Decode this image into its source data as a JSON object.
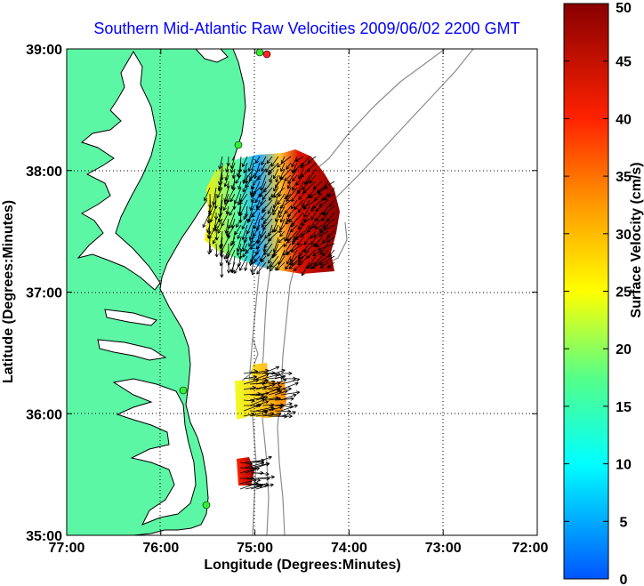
{
  "title": "Southern Mid-Atlantic Raw Velocities 2009/06/02 2200 GMT",
  "x_axis": {
    "label": "Longitude (Degrees:Minutes)",
    "ticks": [
      "77:00",
      "76:00",
      "75:00",
      "74:00",
      "73:00",
      "72:00"
    ],
    "values": [
      -77,
      -76,
      -75,
      -74,
      -73,
      -72
    ]
  },
  "y_axis": {
    "label": "Latitude (Degrees:Minutes)",
    "ticks": [
      "39:00",
      "38:00",
      "37:00",
      "36:00",
      "35:00"
    ],
    "values": [
      39,
      38,
      37,
      36,
      35
    ]
  },
  "colorbar": {
    "label": "Surface Velocity (cm/s)",
    "ticks": [
      "50",
      "45",
      "40",
      "35",
      "30",
      "25",
      "20",
      "15",
      "10",
      "5",
      "0"
    ],
    "min": 0,
    "max": 50
  },
  "colors": {
    "land": "#5cf7a5",
    "sea": "#ffffff",
    "coast": "#000000",
    "bathymetry": "#8c8c8c",
    "title": "#0000ff",
    "site_marker": "#33ee33",
    "site_marker_alt": "#ff2222"
  }
}
